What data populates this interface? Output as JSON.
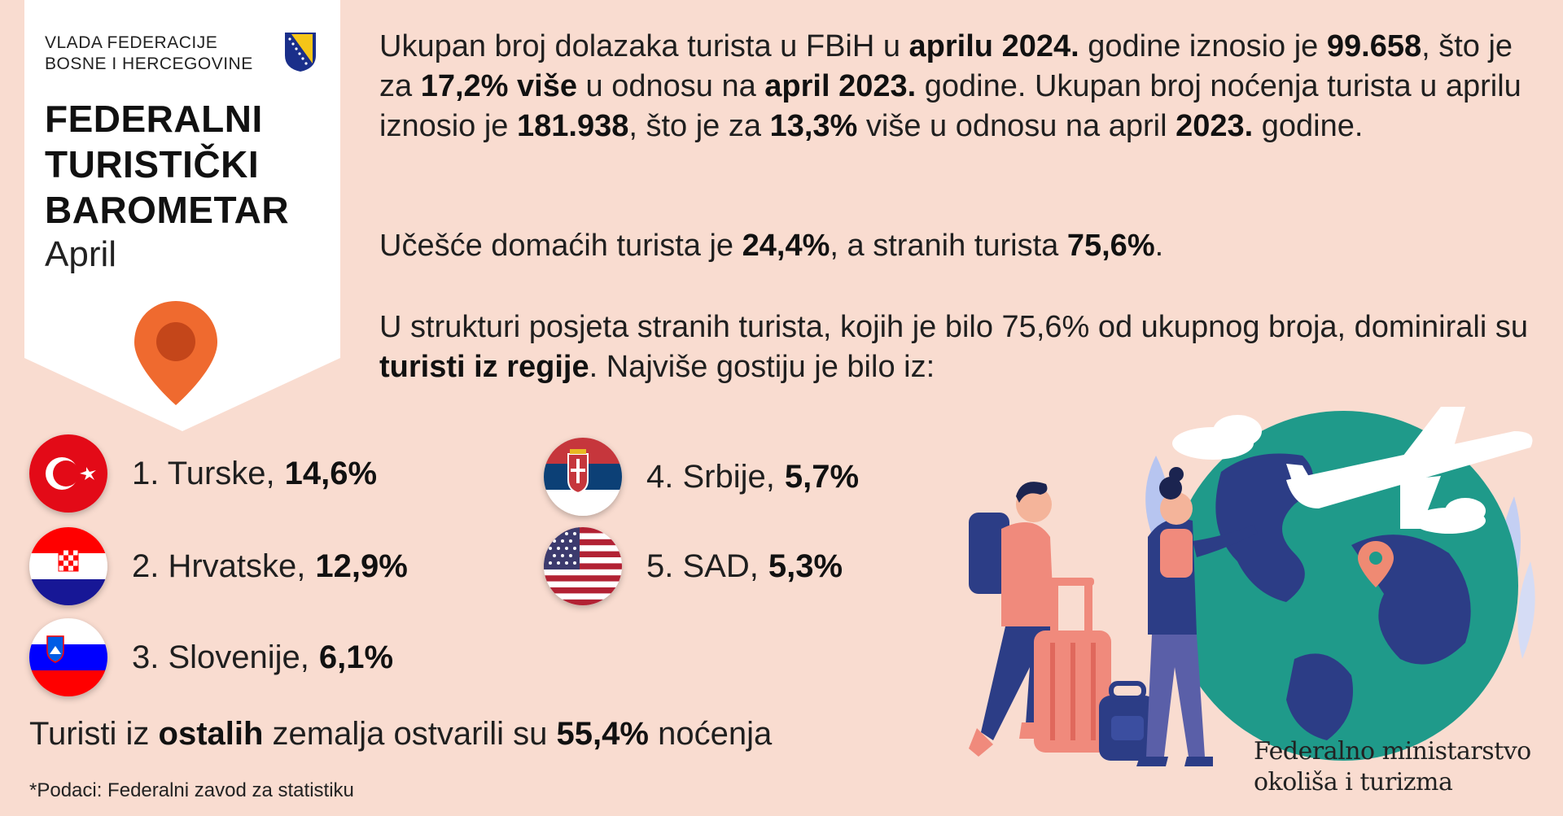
{
  "header": {
    "gov_line1": "VLADA FEDERACIJE",
    "gov_line2": "BOSNE I HERCEGOVINE",
    "title_line1": "FEDERALNI",
    "title_line2": "TURISTIČKI",
    "title_line3": "BAROMETAR",
    "month": "April"
  },
  "summary": {
    "p1": [
      {
        "t": "Ukupan broj dolazaka turista u FBiH u ",
        "b": false
      },
      {
        "t": "aprilu 2024.",
        "b": true
      },
      {
        "t": " godine iznosio je ",
        "b": false
      },
      {
        "t": "99.658",
        "b": true
      },
      {
        "t": ", što je za ",
        "b": false
      },
      {
        "t": "17,2% više",
        "b": true
      },
      {
        "t": " u odnosu na ",
        "b": false
      },
      {
        "t": "april 2023.",
        "b": true
      },
      {
        "t": " godine. Ukupan broj noćenja turista u aprilu iznosio je ",
        "b": false
      },
      {
        "t": "181.938",
        "b": true
      },
      {
        "t": ", što je za ",
        "b": false
      },
      {
        "t": "13,3%",
        "b": true
      },
      {
        "t": " više u odnosu na april ",
        "b": false
      },
      {
        "t": "2023.",
        "b": true
      },
      {
        "t": " godine.",
        "b": false
      }
    ],
    "p2": [
      {
        "t": "Učešće domaćih turista je ",
        "b": false
      },
      {
        "t": "24,4%",
        "b": true
      },
      {
        "t": ", a stranih turista ",
        "b": false
      },
      {
        "t": "75,6%",
        "b": true
      },
      {
        "t": ".",
        "b": false
      }
    ],
    "p3": [
      {
        "t": "U strukturi posjeta stranih turista, kojih je bilo 75,6% od ukupnog broja, dominirali su ",
        "b": false
      },
      {
        "t": "turisti iz regije",
        "b": true
      },
      {
        "t": ". Najviše gostiju je bilo iz:",
        "b": false
      }
    ]
  },
  "countries": [
    {
      "label": "1. Turske,",
      "value": "14,6%",
      "flag": "turkey-flag"
    },
    {
      "label": "2. Hrvatske,",
      "value": "12,9%",
      "flag": "croatia-flag"
    },
    {
      "label": "3. Slovenije,",
      "value": "6,1%",
      "flag": "slovenia-flag"
    },
    {
      "label": "4. Srbije,",
      "value": "5,7%",
      "flag": "serbia-flag"
    },
    {
      "label": "5. SAD,",
      "value": "5,3%",
      "flag": "usa-flag"
    }
  ],
  "others": {
    "pre": "Turisti iz ",
    "bold1": "ostalih",
    "mid": " zemalja ostvarili su ",
    "bold2": "55,4%",
    "post": " noćenja"
  },
  "source": "*Podaci: Federalni zavod za statistiku",
  "ministry": {
    "line1": "Federalno ministarstvo",
    "line2": "okoliša i turizma"
  },
  "colors": {
    "background": "#f9dcd0",
    "accent_orange": "#ef6a2f",
    "globe_teal": "#1f9a8a",
    "globe_blue": "#2c3d86"
  }
}
